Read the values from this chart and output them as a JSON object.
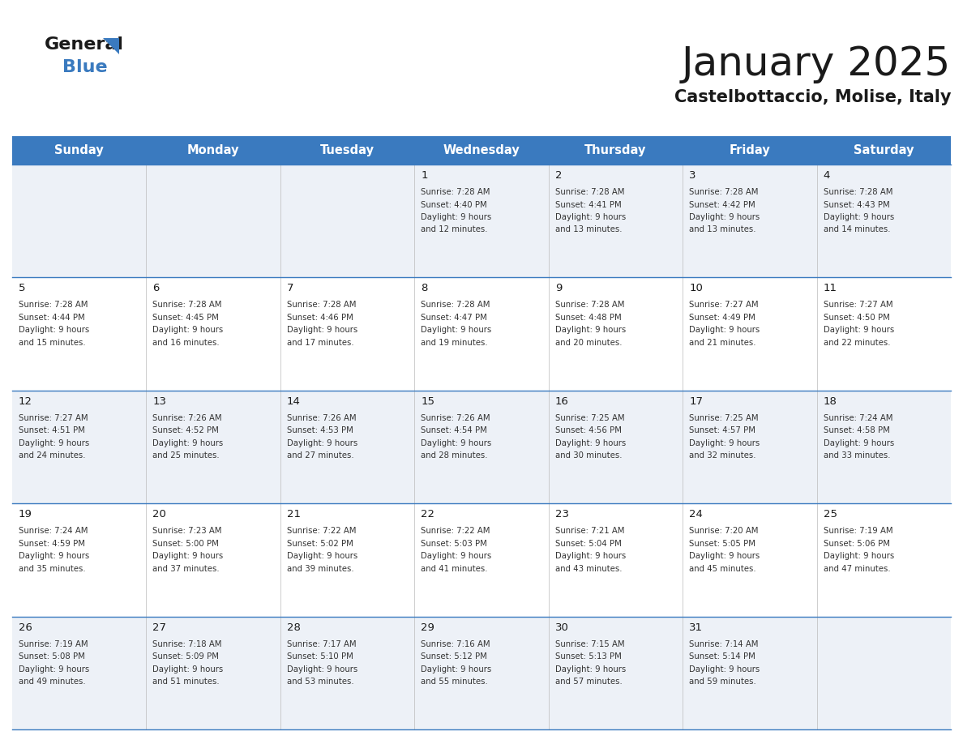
{
  "title": "January 2025",
  "subtitle": "Castelbottaccio, Molise, Italy",
  "header_color": "#3a7abf",
  "header_text_color": "#ffffff",
  "cell_bg_color_odd": "#edf1f7",
  "cell_bg_color_even": "#ffffff",
  "separator_color": "#3a7abf",
  "days_of_week": [
    "Sunday",
    "Monday",
    "Tuesday",
    "Wednesday",
    "Thursday",
    "Friday",
    "Saturday"
  ],
  "title_color": "#1a1a1a",
  "subtitle_color": "#1a1a1a",
  "day_number_color": "#1a1a1a",
  "cell_text_color": "#333333",
  "logo_general_color": "#1a1a1a",
  "logo_blue_color": "#3a7abf",
  "logo_triangle_color": "#3a7abf",
  "calendar": [
    [
      {
        "day": null,
        "sunrise": null,
        "sunset": null,
        "daylight": null
      },
      {
        "day": null,
        "sunrise": null,
        "sunset": null,
        "daylight": null
      },
      {
        "day": null,
        "sunrise": null,
        "sunset": null,
        "daylight": null
      },
      {
        "day": 1,
        "sunrise": "7:28 AM",
        "sunset": "4:40 PM",
        "daylight": "9 hours and 12 minutes."
      },
      {
        "day": 2,
        "sunrise": "7:28 AM",
        "sunset": "4:41 PM",
        "daylight": "9 hours and 13 minutes."
      },
      {
        "day": 3,
        "sunrise": "7:28 AM",
        "sunset": "4:42 PM",
        "daylight": "9 hours and 13 minutes."
      },
      {
        "day": 4,
        "sunrise": "7:28 AM",
        "sunset": "4:43 PM",
        "daylight": "9 hours and 14 minutes."
      }
    ],
    [
      {
        "day": 5,
        "sunrise": "7:28 AM",
        "sunset": "4:44 PM",
        "daylight": "9 hours and 15 minutes."
      },
      {
        "day": 6,
        "sunrise": "7:28 AM",
        "sunset": "4:45 PM",
        "daylight": "9 hours and 16 minutes."
      },
      {
        "day": 7,
        "sunrise": "7:28 AM",
        "sunset": "4:46 PM",
        "daylight": "9 hours and 17 minutes."
      },
      {
        "day": 8,
        "sunrise": "7:28 AM",
        "sunset": "4:47 PM",
        "daylight": "9 hours and 19 minutes."
      },
      {
        "day": 9,
        "sunrise": "7:28 AM",
        "sunset": "4:48 PM",
        "daylight": "9 hours and 20 minutes."
      },
      {
        "day": 10,
        "sunrise": "7:27 AM",
        "sunset": "4:49 PM",
        "daylight": "9 hours and 21 minutes."
      },
      {
        "day": 11,
        "sunrise": "7:27 AM",
        "sunset": "4:50 PM",
        "daylight": "9 hours and 22 minutes."
      }
    ],
    [
      {
        "day": 12,
        "sunrise": "7:27 AM",
        "sunset": "4:51 PM",
        "daylight": "9 hours and 24 minutes."
      },
      {
        "day": 13,
        "sunrise": "7:26 AM",
        "sunset": "4:52 PM",
        "daylight": "9 hours and 25 minutes."
      },
      {
        "day": 14,
        "sunrise": "7:26 AM",
        "sunset": "4:53 PM",
        "daylight": "9 hours and 27 minutes."
      },
      {
        "day": 15,
        "sunrise": "7:26 AM",
        "sunset": "4:54 PM",
        "daylight": "9 hours and 28 minutes."
      },
      {
        "day": 16,
        "sunrise": "7:25 AM",
        "sunset": "4:56 PM",
        "daylight": "9 hours and 30 minutes."
      },
      {
        "day": 17,
        "sunrise": "7:25 AM",
        "sunset": "4:57 PM",
        "daylight": "9 hours and 32 minutes."
      },
      {
        "day": 18,
        "sunrise": "7:24 AM",
        "sunset": "4:58 PM",
        "daylight": "9 hours and 33 minutes."
      }
    ],
    [
      {
        "day": 19,
        "sunrise": "7:24 AM",
        "sunset": "4:59 PM",
        "daylight": "9 hours and 35 minutes."
      },
      {
        "day": 20,
        "sunrise": "7:23 AM",
        "sunset": "5:00 PM",
        "daylight": "9 hours and 37 minutes."
      },
      {
        "day": 21,
        "sunrise": "7:22 AM",
        "sunset": "5:02 PM",
        "daylight": "9 hours and 39 minutes."
      },
      {
        "day": 22,
        "sunrise": "7:22 AM",
        "sunset": "5:03 PM",
        "daylight": "9 hours and 41 minutes."
      },
      {
        "day": 23,
        "sunrise": "7:21 AM",
        "sunset": "5:04 PM",
        "daylight": "9 hours and 43 minutes."
      },
      {
        "day": 24,
        "sunrise": "7:20 AM",
        "sunset": "5:05 PM",
        "daylight": "9 hours and 45 minutes."
      },
      {
        "day": 25,
        "sunrise": "7:19 AM",
        "sunset": "5:06 PM",
        "daylight": "9 hours and 47 minutes."
      }
    ],
    [
      {
        "day": 26,
        "sunrise": "7:19 AM",
        "sunset": "5:08 PM",
        "daylight": "9 hours and 49 minutes."
      },
      {
        "day": 27,
        "sunrise": "7:18 AM",
        "sunset": "5:09 PM",
        "daylight": "9 hours and 51 minutes."
      },
      {
        "day": 28,
        "sunrise": "7:17 AM",
        "sunset": "5:10 PM",
        "daylight": "9 hours and 53 minutes."
      },
      {
        "day": 29,
        "sunrise": "7:16 AM",
        "sunset": "5:12 PM",
        "daylight": "9 hours and 55 minutes."
      },
      {
        "day": 30,
        "sunrise": "7:15 AM",
        "sunset": "5:13 PM",
        "daylight": "9 hours and 57 minutes."
      },
      {
        "day": 31,
        "sunrise": "7:14 AM",
        "sunset": "5:14 PM",
        "daylight": "9 hours and 59 minutes."
      },
      {
        "day": null,
        "sunrise": null,
        "sunset": null,
        "daylight": null
      }
    ]
  ]
}
